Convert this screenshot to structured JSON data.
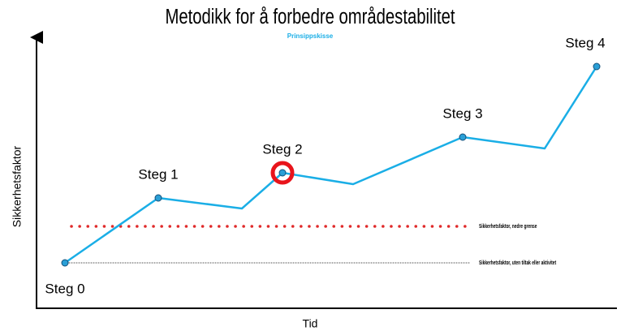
{
  "chart_data": {
    "type": "line",
    "title": "Metodikk for å forbedre områdestabilitet",
    "subtitle": "Prinsippskisse",
    "xlabel": "Tid",
    "ylabel": "Sikkerhetsfaktor",
    "x": [
      35,
      150,
      253,
      303,
      390,
      525,
      626,
      690
    ],
    "values": [
      56,
      136,
      123,
      167,
      153,
      211,
      197,
      298
    ],
    "point_labels": [
      "Steg 0",
      "Steg 1",
      null,
      "Steg 2",
      null,
      "Steg 3",
      null,
      "Steg 4"
    ],
    "color": "#1aaee6",
    "highlight_point": 3,
    "highlight_color": "#e8141b",
    "reference_lines": [
      {
        "label": "Sikkerhetsfaktor, nedre grense",
        "value": 101,
        "color": "#e02a2a",
        "style": "dotted-heavy"
      },
      {
        "label": "Sikkerhetsfaktor, uten tiltak eller aktivitet",
        "value": 56,
        "color": "#555555",
        "style": "dotted-thin"
      }
    ],
    "xlim": [
      0,
      715
    ],
    "ylim": [
      0,
      335
    ]
  }
}
